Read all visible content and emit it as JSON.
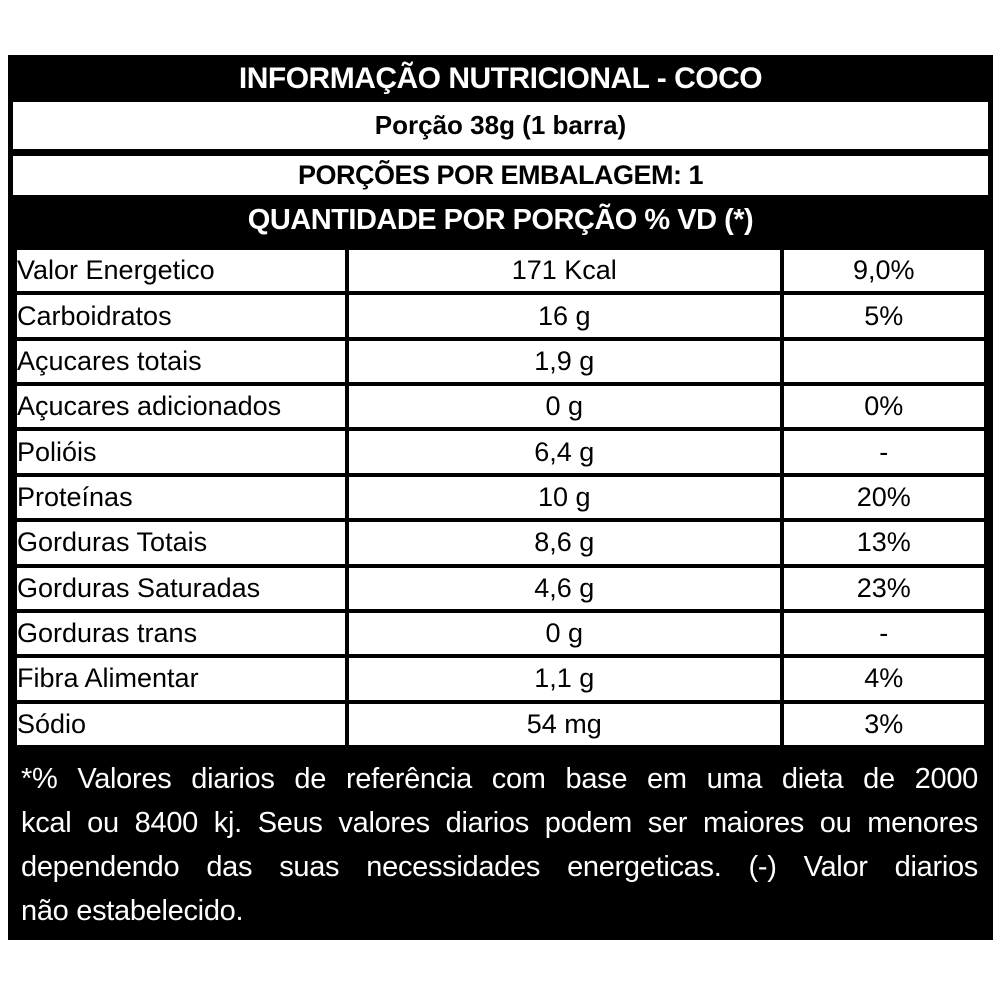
{
  "header": {
    "title": "INFORMAÇÃO NUTRICIONAL - COCO",
    "portion": "Porção 38g (1 barra)",
    "servings_per_package": "PORÇÕES POR EMBALAGEM: 1",
    "columns_header": "QUANTIDADE POR PORÇÃO % VD (*)"
  },
  "table": {
    "rows": [
      {
        "name": "Valor Energetico",
        "amount": "171 Kcal",
        "dv": "9,0%"
      },
      {
        "name": "Carboidratos",
        "amount": "16 g",
        "dv": "5%"
      },
      {
        "name": "Açucares totais",
        "amount": "1,9 g",
        "dv": ""
      },
      {
        "name": "Açucares adicionados",
        "amount": "0 g",
        "dv": "0%"
      },
      {
        "name": "Polióis",
        "amount": "6,4 g",
        "dv": "-"
      },
      {
        "name": "Proteínas",
        "amount": "10 g",
        "dv": "20%"
      },
      {
        "name": "Gorduras Totais",
        "amount": "8,6 g",
        "dv": "13%"
      },
      {
        "name": "Gorduras Saturadas",
        "amount": "4,6 g",
        "dv": "23%"
      },
      {
        "name": "Gorduras trans",
        "amount": "0 g",
        "dv": "-"
      },
      {
        "name": "Fibra Alimentar",
        "amount": "1,1 g",
        "dv": "4%"
      },
      {
        "name": "Sódio",
        "amount": "54 mg",
        "dv": "3%"
      }
    ]
  },
  "footnote_lines": [
    "*% Valores diarios de  referência com  base  em  uma dieta de  2000",
    "kcal ou 8400 kj. Seus valores diarios podem ser maiores ou menores",
    "dependendo das suas necessidades energeticas. (-) Valor diarios",
    "não estabelecido."
  ],
  "colors": {
    "band_background": "#000000",
    "band_text": "#ffffff",
    "row_background": "#ffffff",
    "row_text": "#000000",
    "border": "#000000"
  }
}
